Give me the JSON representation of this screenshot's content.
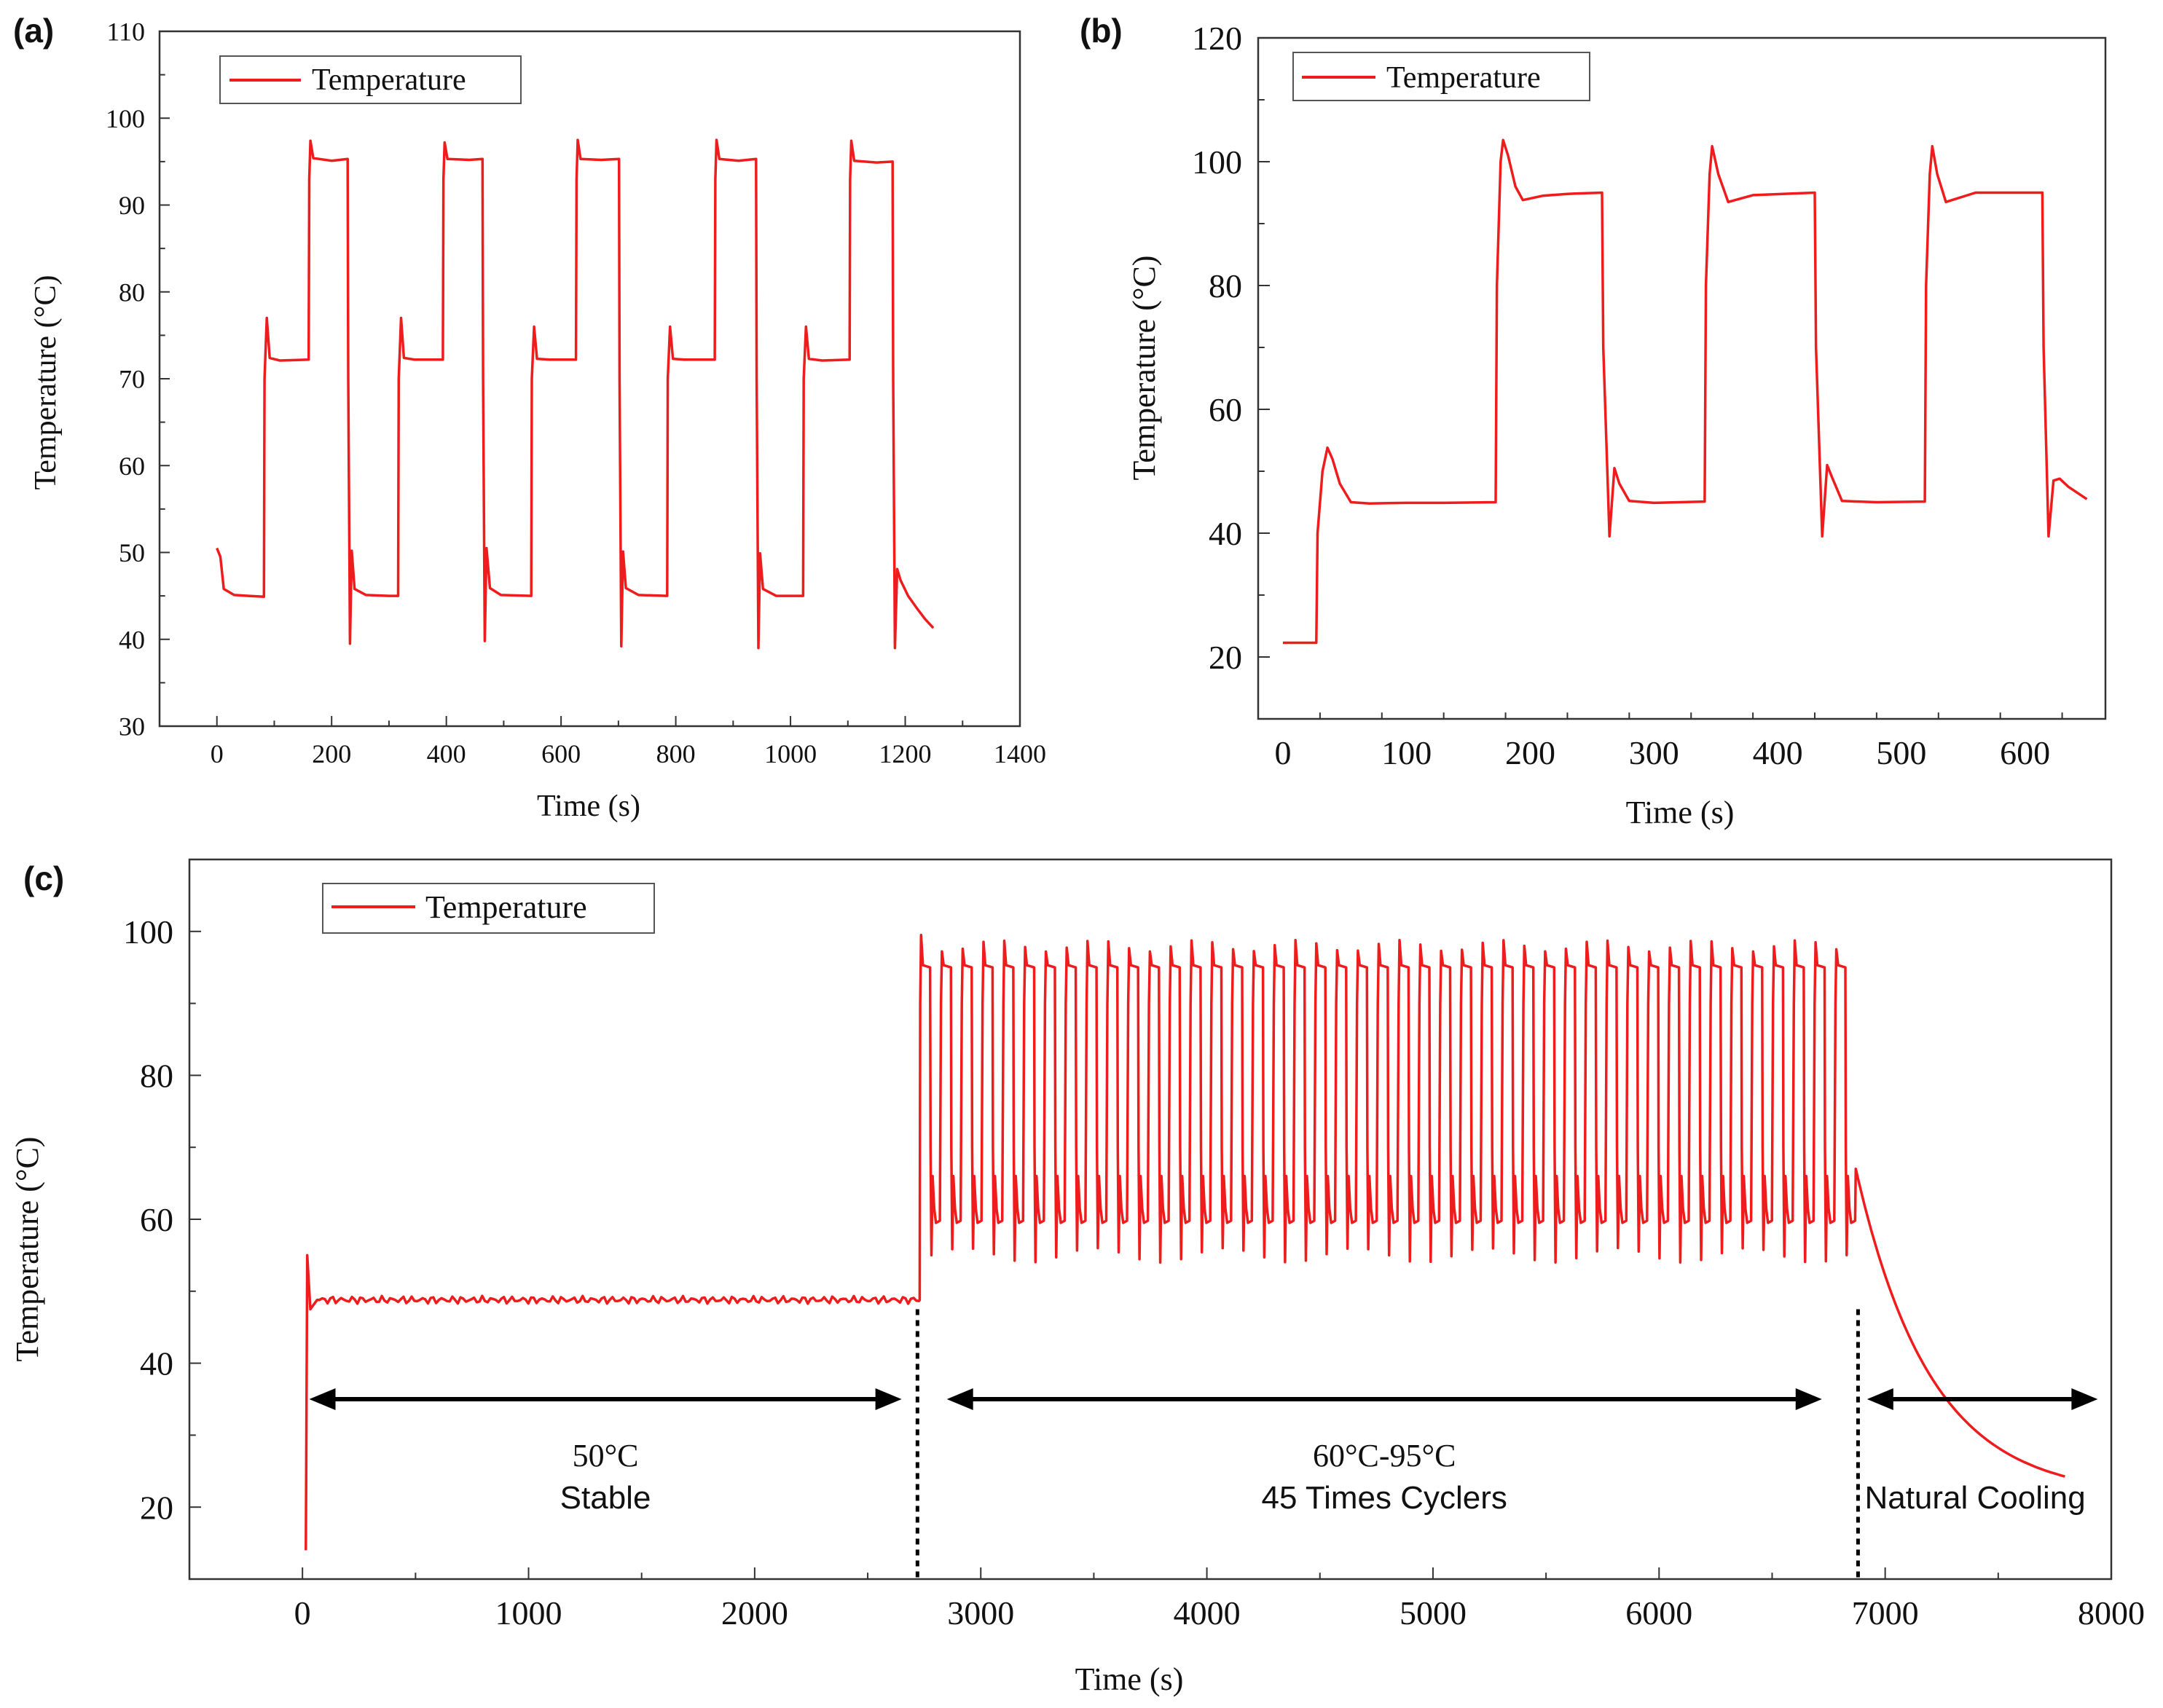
{
  "chart_data": [
    {
      "panel_label": "(a)",
      "type": "line",
      "legend": [
        "Temperature"
      ],
      "xlabel": "Time (s)",
      "ylabel": "Temperature (°C)",
      "xlim": [
        -100,
        1400
      ],
      "ylim": [
        30,
        110
      ],
      "xticks": [
        0,
        200,
        400,
        600,
        800,
        1000,
        1200,
        1400
      ],
      "yticks": [
        30,
        40,
        50,
        60,
        70,
        80,
        90,
        100,
        110
      ],
      "series": [
        {
          "name": "Temperature",
          "color": "#ee1c1c",
          "points": [
            [
              0,
              50.5
            ],
            [
              6,
              49.5
            ],
            [
              12,
              45.8
            ],
            [
              30,
              45.1
            ],
            [
              55,
              45.0
            ],
            [
              82,
              44.9
            ],
            [
              83,
              70
            ],
            [
              87,
              77
            ],
            [
              92,
              72.4
            ],
            [
              110,
              72.1
            ],
            [
              160,
              72.2
            ],
            [
              161,
              93
            ],
            [
              163,
              97.4
            ],
            [
              168,
              95.4
            ],
            [
              200,
              95.1
            ],
            [
              228,
              95.3
            ],
            [
              229,
              70
            ],
            [
              232,
              39.5
            ],
            [
              235,
              50.2
            ],
            [
              240,
              45.8
            ],
            [
              260,
              45.1
            ],
            [
              300,
              45.0
            ],
            [
              316,
              45.0
            ],
            [
              317,
              70
            ],
            [
              321,
              77
            ],
            [
              326,
              72.4
            ],
            [
              345,
              72.2
            ],
            [
              394,
              72.2
            ],
            [
              395,
              93
            ],
            [
              397,
              97.2
            ],
            [
              402,
              95.3
            ],
            [
              440,
              95.2
            ],
            [
              463,
              95.3
            ],
            [
              464,
              70
            ],
            [
              467,
              39.8
            ],
            [
              470,
              50.5
            ],
            [
              476,
              45.9
            ],
            [
              495,
              45.1
            ],
            [
              548,
              45.0
            ],
            [
              549,
              70
            ],
            [
              553,
              76
            ],
            [
              558,
              72.3
            ],
            [
              580,
              72.2
            ],
            [
              626,
              72.2
            ],
            [
              627,
              93
            ],
            [
              629,
              97.5
            ],
            [
              634,
              95.3
            ],
            [
              670,
              95.2
            ],
            [
              701,
              95.3
            ],
            [
              702,
              70
            ],
            [
              705,
              39.2
            ],
            [
              708,
              50.1
            ],
            [
              713,
              45.9
            ],
            [
              735,
              45.1
            ],
            [
              785,
              45.0
            ],
            [
              786,
              70
            ],
            [
              790,
              76
            ],
            [
              795,
              72.3
            ],
            [
              815,
              72.2
            ],
            [
              868,
              72.2
            ],
            [
              869,
              93
            ],
            [
              871,
              97.5
            ],
            [
              876,
              95.3
            ],
            [
              910,
              95.1
            ],
            [
              940,
              95.3
            ],
            [
              941,
              70
            ],
            [
              944,
              39.0
            ],
            [
              947,
              49.9
            ],
            [
              952,
              45.8
            ],
            [
              975,
              45.0
            ],
            [
              1022,
              45.0
            ],
            [
              1023,
              70
            ],
            [
              1027,
              76
            ],
            [
              1032,
              72.3
            ],
            [
              1055,
              72.1
            ],
            [
              1103,
              72.2
            ],
            [
              1104,
              93
            ],
            [
              1106,
              97.4
            ],
            [
              1111,
              95.1
            ],
            [
              1150,
              94.9
            ],
            [
              1178,
              95.0
            ],
            [
              1179,
              70
            ],
            [
              1182,
              39.0
            ],
            [
              1186,
              48.1
            ],
            [
              1192,
              46.8
            ],
            [
              1205,
              45.0
            ],
            [
              1220,
              43.6
            ],
            [
              1235,
              42.3
            ],
            [
              1249,
              41.3
            ]
          ]
        }
      ]
    },
    {
      "panel_label": "(b)",
      "type": "line",
      "legend": [
        "Temperature"
      ],
      "xlabel": "Time (s)",
      "ylabel": "Temperature (°C)",
      "xlim": [
        -20,
        665
      ],
      "ylim": [
        10,
        120
      ],
      "xticks": [
        0,
        100,
        200,
        300,
        400,
        500,
        600
      ],
      "yticks": [
        20,
        40,
        60,
        80,
        100,
        120
      ],
      "series": [
        {
          "name": "Temperature",
          "color": "#ee1c1c",
          "points": [
            [
              0,
              22.3
            ],
            [
              15,
              22.3
            ],
            [
              27,
              22.3
            ],
            [
              28,
              40
            ],
            [
              32,
              50
            ],
            [
              36,
              53.8
            ],
            [
              40,
              52
            ],
            [
              46,
              48
            ],
            [
              55,
              45
            ],
            [
              70,
              44.8
            ],
            [
              100,
              44.9
            ],
            [
              130,
              44.9
            ],
            [
              172,
              45.0
            ],
            [
              173,
              80
            ],
            [
              176,
              100
            ],
            [
              178,
              103.5
            ],
            [
              182,
              101
            ],
            [
              188,
              96
            ],
            [
              194,
              93.8
            ],
            [
              210,
              94.5
            ],
            [
              230,
              94.8
            ],
            [
              258,
              95.0
            ],
            [
              259,
              70
            ],
            [
              264,
              39.5
            ],
            [
              268,
              50.5
            ],
            [
              272,
              48
            ],
            [
              280,
              45.2
            ],
            [
              300,
              44.9
            ],
            [
              341,
              45.1
            ],
            [
              342,
              80
            ],
            [
              345,
              98
            ],
            [
              347,
              102.5
            ],
            [
              352,
              98
            ],
            [
              360,
              93.5
            ],
            [
              380,
              94.6
            ],
            [
              430,
              95.0
            ],
            [
              431,
              70
            ],
            [
              436,
              39.5
            ],
            [
              440,
              51
            ],
            [
              444,
              49
            ],
            [
              452,
              45.2
            ],
            [
              480,
              45.0
            ],
            [
              519,
              45.1
            ],
            [
              520,
              80
            ],
            [
              523,
              98
            ],
            [
              525,
              102.5
            ],
            [
              529,
              98
            ],
            [
              536,
              93.5
            ],
            [
              560,
              95.0
            ],
            [
              614,
              95.0
            ],
            [
              615,
              70
            ],
            [
              619,
              39.5
            ],
            [
              623,
              48.5
            ],
            [
              628,
              48.8
            ],
            [
              635,
              47.5
            ],
            [
              650,
              45.5
            ]
          ]
        }
      ]
    },
    {
      "panel_label": "(c)",
      "type": "line",
      "legend": [
        "Temperature"
      ],
      "xlabel": "Time (s)",
      "ylabel": "Temperature (°C)",
      "xlim": [
        -500,
        8000
      ],
      "ylim": [
        10,
        110
      ],
      "xticks": [
        0,
        1000,
        2000,
        3000,
        4000,
        5000,
        6000,
        7000,
        8000
      ],
      "yticks": [
        20,
        40,
        60,
        80,
        100
      ],
      "stable": {
        "start": 15,
        "end": 2730,
        "level": 48.8,
        "start_value": 14,
        "peak": 55
      },
      "cycling": {
        "start": 2730,
        "end": 6870,
        "count": 45,
        "high": 95,
        "low": 59.5,
        "overshoot_high": 98,
        "overshoot_low": 66,
        "undershoot_low": 55
      },
      "cooling": {
        "start": 6870,
        "end": 7800,
        "start_value": 67,
        "end_value": 25
      },
      "annotations": [
        {
          "x_start": 30,
          "x_end": 2650,
          "y": 35,
          "line1": "50°C",
          "line2": "Stable"
        },
        {
          "x_start": 2850,
          "x_end": 6720,
          "y": 35,
          "line1": "60°C-95°C",
          "line2": "45 Times Cyclers"
        },
        {
          "x_start": 6920,
          "x_end": 7940,
          "y": 35,
          "line2": "Natural Cooling"
        }
      ],
      "dividers": [
        2720,
        6880
      ]
    }
  ],
  "colors": {
    "line": "#ee1c1c",
    "axis": "#333333",
    "arrow": "#000000"
  }
}
